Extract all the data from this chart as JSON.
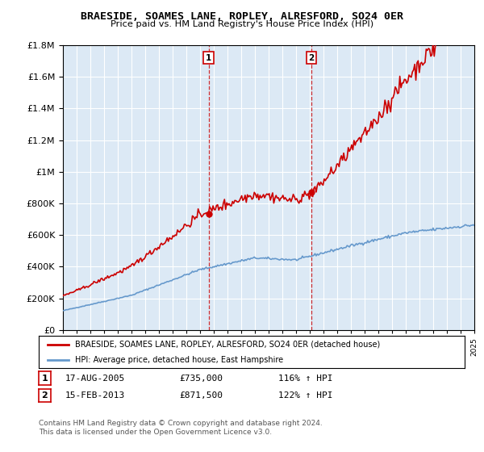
{
  "title": "BRAESIDE, SOAMES LANE, ROPLEY, ALRESFORD, SO24 0ER",
  "subtitle": "Price paid vs. HM Land Registry's House Price Index (HPI)",
  "legend_line1": "BRAESIDE, SOAMES LANE, ROPLEY, ALRESFORD, SO24 0ER (detached house)",
  "legend_line2": "HPI: Average price, detached house, East Hampshire",
  "transaction1_date": "17-AUG-2005",
  "transaction1_price": "£735,000",
  "transaction1_hpi": "116% ↑ HPI",
  "transaction1_year": 2005.625,
  "transaction1_value": 735000,
  "transaction2_date": "15-FEB-2013",
  "transaction2_price": "£871,500",
  "transaction2_hpi": "122% ↑ HPI",
  "transaction2_year": 2013.125,
  "transaction2_value": 871500,
  "footnote1": "Contains HM Land Registry data © Crown copyright and database right 2024.",
  "footnote2": "This data is licensed under the Open Government Licence v3.0.",
  "hpi_color": "#6699cc",
  "price_color": "#cc0000",
  "background_color": "#dce9f5",
  "ylim_min": 0,
  "ylim_max": 1800000,
  "xmin": 1995,
  "xmax": 2025
}
